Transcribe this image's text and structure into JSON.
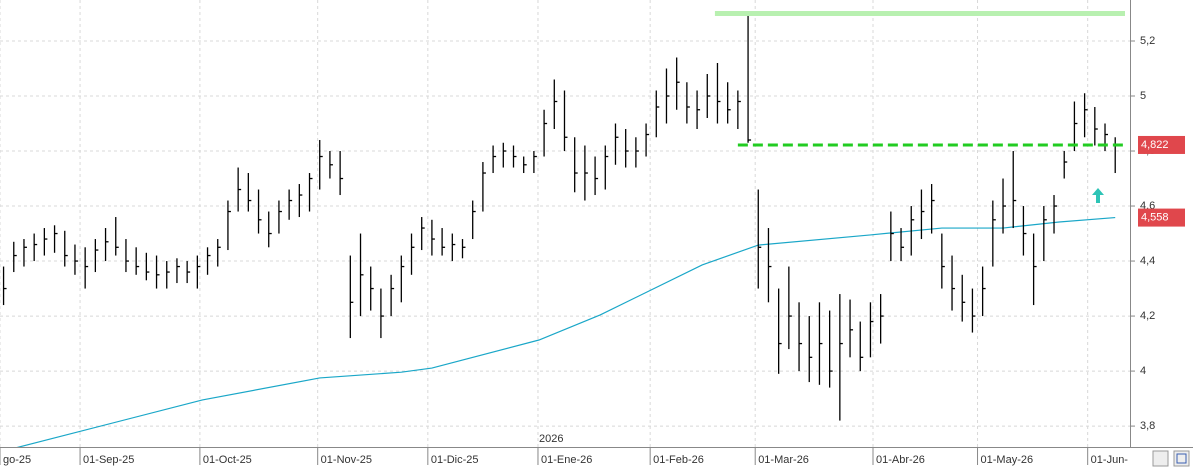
{
  "chart_data": {
    "type": "ohlc",
    "x": [
      -15,
      -13,
      -11,
      -9,
      -7,
      -5,
      -3,
      -1,
      1,
      3,
      5,
      7,
      9,
      11,
      13,
      15,
      17,
      19,
      21,
      23,
      25,
      27,
      29,
      31,
      33,
      35,
      37,
      39,
      41,
      43,
      45,
      47,
      49,
      51,
      53,
      55,
      57,
      59,
      61,
      63,
      65,
      67,
      69,
      71,
      73,
      75,
      77,
      79,
      81,
      83,
      85,
      87,
      89,
      91,
      93,
      95,
      97,
      99,
      101,
      103,
      105,
      107,
      109,
      111,
      113,
      115,
      117,
      119,
      121,
      123,
      125,
      127,
      129,
      131,
      133,
      135,
      137,
      139,
      141,
      143,
      145,
      147,
      149,
      151,
      153,
      155,
      157,
      159,
      161,
      163,
      165,
      167,
      169,
      171,
      173,
      175,
      177,
      179,
      181,
      183,
      185,
      187,
      189,
      191,
      193,
      195,
      197,
      199,
      201,
      203
    ],
    "high": [
      4.38,
      4.47,
      4.48,
      4.5,
      4.52,
      4.53,
      4.51,
      4.46,
      4.45,
      4.48,
      4.52,
      4.56,
      4.48,
      4.45,
      4.43,
      4.42,
      4.4,
      4.41,
      4.4,
      4.42,
      4.45,
      4.48,
      4.62,
      4.74,
      4.72,
      4.66,
      4.58,
      4.62,
      4.66,
      4.68,
      4.72,
      4.84,
      4.8,
      4.8,
      4.42,
      4.5,
      4.38,
      4.3,
      4.35,
      4.42,
      4.5,
      4.56,
      4.55,
      4.52,
      4.5,
      4.48,
      4.62,
      4.76,
      4.82,
      4.83,
      4.82,
      4.78,
      4.8,
      4.95,
      5.06,
      5.02,
      4.85,
      4.82,
      4.78,
      4.82,
      4.9,
      4.88,
      4.85,
      4.9,
      5.02,
      5.1,
      5.14,
      5.05,
      5.02,
      5.08,
      5.12,
      5.05,
      5.02,
      5.3,
      4.66,
      4.52,
      4.3,
      4.38,
      4.25,
      4.2,
      4.25,
      4.22,
      4.28,
      4.26,
      4.18,
      4.25,
      4.28,
      4.58,
      4.52,
      4.6,
      4.66,
      4.68,
      4.5,
      4.42,
      4.35,
      4.3,
      4.38,
      4.62,
      4.7,
      4.8,
      4.6,
      4.5,
      4.6,
      4.64,
      4.8,
      4.98,
      5.01,
      4.96,
      4.9,
      4.85
    ],
    "low": [
      4.24,
      4.36,
      4.38,
      4.4,
      4.42,
      4.43,
      4.38,
      4.35,
      4.3,
      4.36,
      4.4,
      4.42,
      4.36,
      4.35,
      4.33,
      4.3,
      4.3,
      4.32,
      4.32,
      4.3,
      4.35,
      4.38,
      4.44,
      4.58,
      4.58,
      4.5,
      4.45,
      4.5,
      4.55,
      4.56,
      4.58,
      4.66,
      4.7,
      4.64,
      4.12,
      4.2,
      4.22,
      4.12,
      4.2,
      4.25,
      4.35,
      4.44,
      4.42,
      4.42,
      4.4,
      4.41,
      4.48,
      4.58,
      4.72,
      4.74,
      4.74,
      4.72,
      4.72,
      4.78,
      4.88,
      4.8,
      4.65,
      4.62,
      4.64,
      4.66,
      4.75,
      4.74,
      4.74,
      4.78,
      4.85,
      4.9,
      4.95,
      4.9,
      4.88,
      4.92,
      4.9,
      4.9,
      4.88,
      4.83,
      4.3,
      4.25,
      3.99,
      4.08,
      4.0,
      3.96,
      3.95,
      3.94,
      3.82,
      4.05,
      4.0,
      4.05,
      4.1,
      4.4,
      4.4,
      4.42,
      4.48,
      4.5,
      4.3,
      4.22,
      4.18,
      4.14,
      4.2,
      4.38,
      4.5,
      4.52,
      4.42,
      4.24,
      4.4,
      4.5,
      4.7,
      4.8,
      4.85,
      4.82,
      4.8,
      4.72
    ],
    "close": [
      4.3,
      4.42,
      4.45,
      4.46,
      4.48,
      4.5,
      4.42,
      4.4,
      4.38,
      4.44,
      4.47,
      4.45,
      4.4,
      4.38,
      4.36,
      4.35,
      4.36,
      4.38,
      4.36,
      4.38,
      4.42,
      4.45,
      4.58,
      4.66,
      4.62,
      4.55,
      4.5,
      4.58,
      4.62,
      4.64,
      4.7,
      4.78,
      4.75,
      4.7,
      4.25,
      4.35,
      4.3,
      4.2,
      4.3,
      4.38,
      4.45,
      4.52,
      4.48,
      4.45,
      4.46,
      4.45,
      4.58,
      4.72,
      4.78,
      4.8,
      4.78,
      4.75,
      4.78,
      4.9,
      4.98,
      4.85,
      4.72,
      4.72,
      4.7,
      4.78,
      4.85,
      4.8,
      4.8,
      4.86,
      4.96,
      5.0,
      5.05,
      4.96,
      4.95,
      5.0,
      4.98,
      4.95,
      4.98,
      4.84,
      4.45,
      4.38,
      4.1,
      4.2,
      4.1,
      4.05,
      4.1,
      4.0,
      4.1,
      4.15,
      4.05,
      4.18,
      4.2,
      4.5,
      4.45,
      4.55,
      4.58,
      4.62,
      4.38,
      4.3,
      4.25,
      4.2,
      4.3,
      4.55,
      4.6,
      4.62,
      4.5,
      4.38,
      4.55,
      4.6,
      4.76,
      4.9,
      4.95,
      4.88,
      4.86,
      4.822
    ],
    "color": "#000000",
    "moving_average": {
      "color": "#1aa7c8",
      "x": [
        -17,
        24,
        47,
        63,
        69,
        90,
        102,
        122,
        133,
        155,
        169,
        181,
        192,
        203
      ],
      "values": [
        3.7,
        3.895,
        3.975,
        3.996,
        4.011,
        4.113,
        4.204,
        4.386,
        4.458,
        4.495,
        4.52,
        4.52,
        4.542,
        4.558
      ]
    },
    "hlines": [
      {
        "value": 5.3,
        "from": 124.5,
        "color": "#b8f0b0"
      },
      {
        "value": 4.822,
        "from": 129,
        "color": "#22cc22",
        "dashed": true
      }
    ],
    "price_labels": [
      {
        "value": 4.822,
        "label": "4,822"
      },
      {
        "value": 4.558,
        "label": "4,558"
      }
    ],
    "price_label_color": "#e0474c",
    "year_label": "2026",
    "xlim": [
      -15.7,
      205.9
    ],
    "xticks": [
      {
        "value": -15.7,
        "label": "go-25"
      },
      {
        "value": 0,
        "label": "01-Sep-25"
      },
      {
        "value": 23.5,
        "label": "01-Oct-25"
      },
      {
        "value": 46.6,
        "label": "01-Nov-25"
      },
      {
        "value": 68.2,
        "label": "01-Dic-25"
      },
      {
        "value": 89.8,
        "label": "01-Ene-26"
      },
      {
        "value": 111.8,
        "label": "01-Feb-26"
      },
      {
        "value": 132.4,
        "label": "01-Mar-26"
      },
      {
        "value": 155.5,
        "label": "01-Abr-26"
      },
      {
        "value": 176,
        "label": "01-May-26"
      },
      {
        "value": 197.6,
        "label": "01-Jun-"
      }
    ],
    "ylim": [
      3.724,
      5.349
    ],
    "yticks": [
      {
        "value": 3.8,
        "label": "3,8"
      },
      4,
      {
        "value": 4.2,
        "label": "4,2"
      },
      {
        "value": 4.4,
        "label": "4,4"
      },
      {
        "value": 4.6,
        "label": "4,6"
      },
      {
        "value": 4.8,
        "label": "4,8"
      },
      5,
      {
        "value": 5.2,
        "label": "5,2"
      }
    ],
    "grid": true
  }
}
